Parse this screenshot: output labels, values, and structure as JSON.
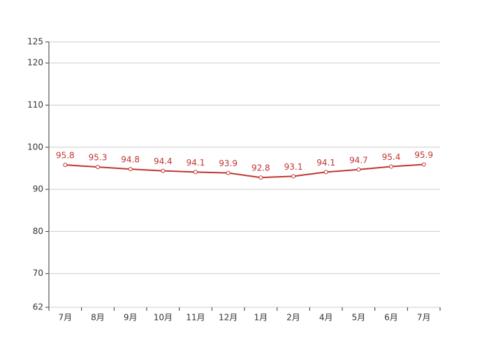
{
  "chart_data": {
    "type": "line",
    "categories": [
      "7月",
      "8月",
      "9月",
      "10月",
      "11月",
      "12月",
      "1月",
      "2月",
      "4月",
      "5月",
      "6月",
      "7月"
    ],
    "series": [
      {
        "color": "#c23531",
        "values": [
          95.8,
          95.3,
          94.8,
          94.4,
          94.1,
          93.9,
          92.8,
          93.1,
          94.1,
          94.7,
          95.4,
          95.9
        ]
      }
    ],
    "ylim": [
      62,
      125
    ],
    "yticks": [
      62,
      70,
      80,
      90,
      100,
      110,
      120,
      125
    ],
    "grid": true
  }
}
